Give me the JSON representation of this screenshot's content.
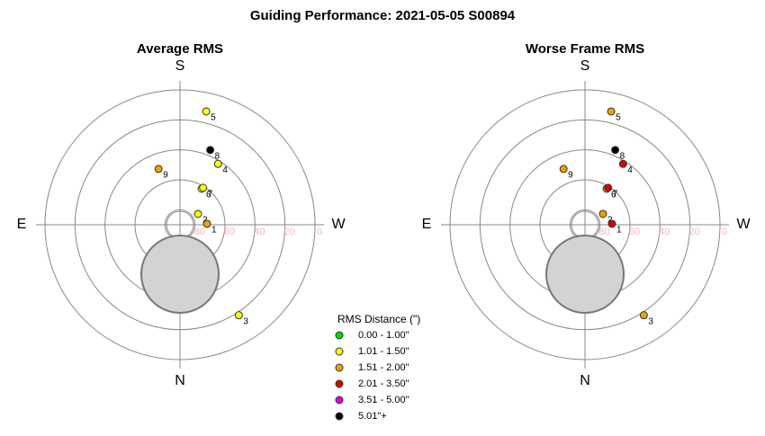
{
  "title": "Guiding Performance: 2021-05-05 S00894",
  "legend": {
    "title": "RMS Distance (\")",
    "items": [
      {
        "label": "0.00 - 1.00\"",
        "color": "#00e000"
      },
      {
        "label": "1.01 - 1.50\"",
        "color": "#ffff00"
      },
      {
        "label": "1.51 - 2.00\"",
        "color": "#f0a000"
      },
      {
        "label": "2.01 - 3.50\"",
        "color": "#e00000"
      },
      {
        "label": "3.51 - 5.00\"",
        "color": "#e000e0"
      },
      {
        "label": "5.01\"+",
        "color": "#000000"
      }
    ]
  },
  "chart_data": [
    {
      "type": "polar",
      "title": "Average RMS",
      "directions": [
        "S",
        "W",
        "N",
        "E"
      ],
      "rlim": [
        90,
        0
      ],
      "rticks": [
        80,
        60,
        40,
        20,
        0
      ],
      "points": [
        {
          "label": "5",
          "alt": 12.4,
          "az": 193,
          "color": "#ffff00"
        },
        {
          "label": "8",
          "alt": 36.2,
          "az": 202,
          "color": "#000000"
        },
        {
          "label": "4",
          "alt": 42.1,
          "az": 212,
          "color": "#ffff00"
        },
        {
          "label": "9",
          "alt": 50.1,
          "az": 159,
          "color": "#f0a000"
        },
        {
          "label": "6",
          "alt": 62,
          "az": 211,
          "color": "#ffff00"
        },
        {
          "label": "7",
          "alt": 60.9,
          "az": 212,
          "color": "#ffff00"
        },
        {
          "label": "2",
          "alt": 76,
          "az": 239,
          "color": "#ffff00"
        },
        {
          "label": "1",
          "alt": 72,
          "az": 268,
          "color": "#f0a000"
        },
        {
          "label": "3",
          "alt": 18,
          "az": 327,
          "color": "#ffff00"
        }
      ]
    },
    {
      "type": "polar",
      "title": "Worse Frame RMS",
      "directions": [
        "S",
        "W",
        "N",
        "E"
      ],
      "rlim": [
        90,
        0
      ],
      "rticks": [
        80,
        60,
        40,
        20,
        0
      ],
      "points": [
        {
          "label": "5",
          "alt": 12.4,
          "az": 193,
          "color": "#f0a000"
        },
        {
          "label": "8",
          "alt": 36.2,
          "az": 202,
          "color": "#000000"
        },
        {
          "label": "4",
          "alt": 42.1,
          "az": 212,
          "color": "#e00000"
        },
        {
          "label": "9",
          "alt": 50.1,
          "az": 159,
          "color": "#f0a000"
        },
        {
          "label": "6",
          "alt": 62,
          "az": 211,
          "color": "#f0a000"
        },
        {
          "label": "7",
          "alt": 60.9,
          "az": 212,
          "color": "#e00000"
        },
        {
          "label": "2",
          "alt": 76,
          "az": 239,
          "color": "#f0a000"
        },
        {
          "label": "1",
          "alt": 72,
          "az": 268,
          "color": "#e00000"
        },
        {
          "label": "3",
          "alt": 18,
          "az": 327,
          "color": "#f0a000"
        }
      ]
    }
  ]
}
